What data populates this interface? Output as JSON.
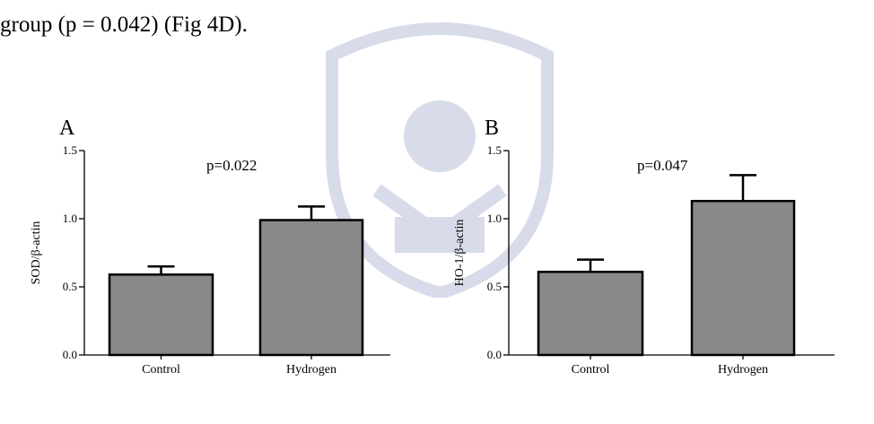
{
  "intro_text": "group (p = 0.042) (Fig 4D).",
  "colors": {
    "bar_fill": "#898989",
    "axis": "#000000",
    "watermark": "#2e3f8f"
  },
  "chart_data": [
    {
      "panel": "A",
      "type": "bar",
      "categories": [
        "Control",
        "Hydrogen"
      ],
      "values": [
        0.59,
        0.99
      ],
      "errors": [
        0.06,
        0.1
      ],
      "ylabel": "SOD/β-actin",
      "ylim": [
        0,
        1.5
      ],
      "yticks": [
        "0.0",
        "0.5",
        "1.0",
        "1.5"
      ],
      "annotation": "p=0.022",
      "grid": false
    },
    {
      "panel": "B",
      "type": "bar",
      "categories": [
        "Control",
        "Hydrogen"
      ],
      "values": [
        0.61,
        1.13
      ],
      "errors": [
        0.09,
        0.19
      ],
      "ylabel": "HO-1/β-actin",
      "ylim": [
        0,
        1.5
      ],
      "yticks": [
        "0.0",
        "0.5",
        "1.0",
        "1.5"
      ],
      "annotation": "p=0.047",
      "grid": false
    }
  ]
}
